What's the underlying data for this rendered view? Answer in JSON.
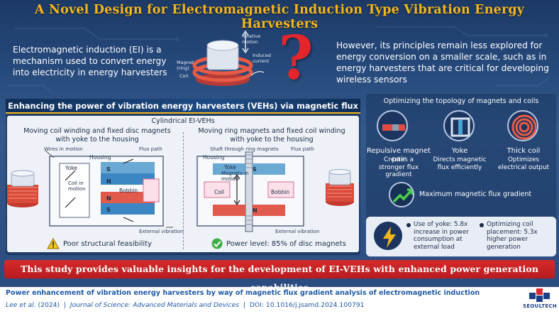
{
  "title": "A Novel Design for Electromagnetic Induction Type Vibration Energy Harvesters",
  "intro": {
    "left_text": "Electromagnetic induction (EI) is a mechanism used to convert energy into electricity in energy harvesters",
    "right_text": "However, its principles remain less explored for energy conversion on a smaller scale, such as in energy harvesters that are critical for developing wireless sensors",
    "question_mark": "?",
    "diagram_labels": {
      "relative_motion": "Relative motion",
      "induced_current": "Induced current",
      "magnet": "Magnet (ring)",
      "coil": "Coil"
    }
  },
  "left_panel": {
    "header": "Enhancing the power of vibration energy harvesters (VEHs) via magnetic flux gradient analysis",
    "subtitle": "Cylindrical EI-VEHs",
    "design_a": {
      "caption": "Moving coil winding and fixed disc magnets with yoke to the housing",
      "wires": "Wires in motion",
      "housing": "Housing",
      "flux": "Flux path",
      "yoke": "Yoke",
      "coil_in_motion": "Coil in motion",
      "bobbin": "Bobbin",
      "external": "External vibration",
      "s": "S",
      "n": "N",
      "status": "Poor structural feasibility"
    },
    "design_b": {
      "caption": "Moving ring magnets and fixed coil winding with yoke to the housing",
      "shaft": "Shaft through ring magnets",
      "flux": "Flux path",
      "housing": "Housing",
      "yoke": "Yoke",
      "magnets_in_motion": "Magnets in motion",
      "coil": "Coil",
      "bobbin": "Bobbin",
      "external": "External vibration",
      "s": "S",
      "n": "N",
      "status": "Power level: 85% of disc magnets"
    }
  },
  "right_panel": {
    "heading": "Optimizing the topology of magnets and coils",
    "items": [
      {
        "title": "Repulsive magnet pair",
        "desc": "Creates a stronger flux gradient",
        "icon": "magnet-pair-icon"
      },
      {
        "title": "Yoke",
        "desc": "Directs magnetic flux efficiently",
        "icon": "yoke-icon"
      },
      {
        "title": "Thick coil",
        "desc": "Optimizes electrical output",
        "icon": "coil-icon"
      }
    ],
    "max_gradient": "Maximum magnetic flux gradient",
    "results": [
      "Use of yoke: 5.8x increase in power consumption at external load",
      "Optimizing coil placement: 5.3x higher power generation"
    ]
  },
  "banner": "This study provides valuable insights for the development of EI-VEHs with enhanced power generation capabilities",
  "footer": {
    "title": "Power enhancement of vibration energy harvesters by way of magnetic flux gradient analysis of electromagnetic induction",
    "author": "Lee et al.",
    "year": "(2024)",
    "journal": "Journal of Science: Advanced Materials and Devices",
    "doi": "DOI: 10.1016/j.jsamd.2024.100791",
    "logo": "SEOULTECH"
  },
  "colors": {
    "title": "#f5b61b",
    "banner": "#c8232a",
    "footer_text": "#1f5aa6",
    "magnet_red": "#e04a43",
    "magnet_blue": "#4aa3d6"
  }
}
